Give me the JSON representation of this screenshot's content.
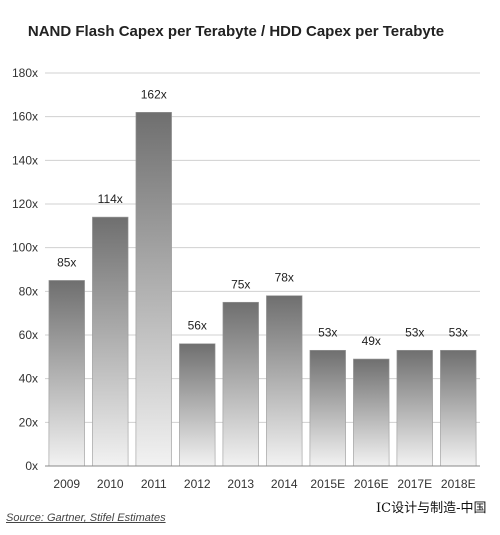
{
  "chart_data": {
    "type": "bar",
    "title": "NAND Flash Capex per Terabyte / HDD Capex per Terabyte",
    "categories": [
      "2009",
      "2010",
      "2011",
      "2012",
      "2013",
      "2014",
      "2015E",
      "2016E",
      "2017E",
      "2018E"
    ],
    "values": [
      85,
      114,
      162,
      56,
      75,
      78,
      53,
      49,
      53,
      53
    ],
    "data_labels": [
      "85x",
      "114x",
      "162x",
      "56x",
      "75x",
      "78x",
      "53x",
      "49x",
      "53x",
      "53x"
    ],
    "y_ticks": [
      "0x",
      "20x",
      "40x",
      "60x",
      "80x",
      "100x",
      "120x",
      "140x",
      "160x",
      "180x"
    ],
    "ylim": [
      0,
      180
    ],
    "xlabel": "",
    "ylabel": "",
    "grid": true,
    "legend": "none",
    "colors": {
      "bar_top": "#6f6f6f",
      "bar_bottom": "#f2f2f2",
      "grid": "#d0d0d0",
      "axis": "#888888"
    }
  },
  "source": "Source: Gartner, Stifel Estimates",
  "watermark": "IC设计与制造-中国"
}
